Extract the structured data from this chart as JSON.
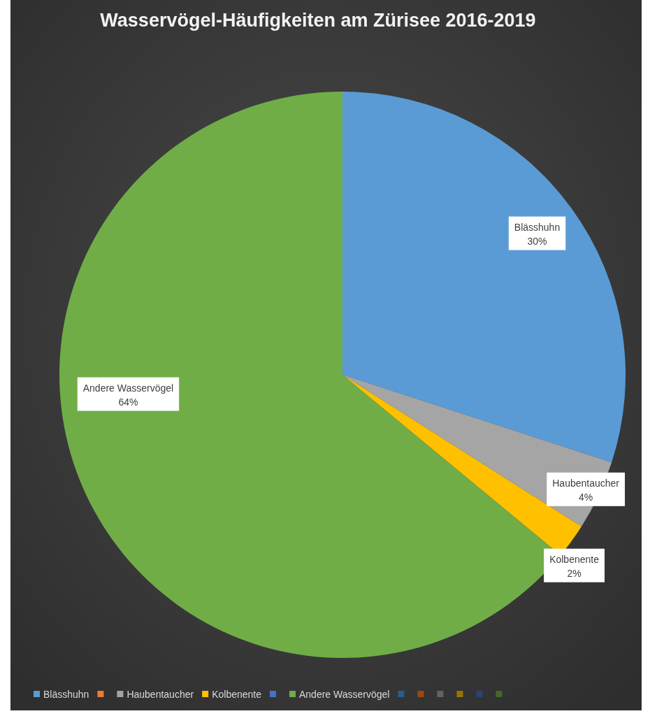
{
  "chart_data": {
    "type": "pie",
    "title": "Wasservögel-Häufigkeiten am Zürisee 2016-2019",
    "categories": [
      "Blässhuhn",
      null,
      "Haubentaucher",
      "Kolbenente",
      null,
      "Andere Wasservögel",
      null,
      null,
      null,
      null,
      null,
      null
    ],
    "values": [
      30,
      0,
      4,
      2,
      0,
      64,
      0,
      0,
      0,
      0,
      0,
      0
    ],
    "colors": [
      "#5b9bd5",
      "#ed7d31",
      "#a5a5a5",
      "#ffc000",
      "#4472c4",
      "#70ad47",
      "#255e91",
      "#9e480e",
      "#636363",
      "#997300",
      "#264478",
      "#43682b"
    ],
    "value_labels": [
      "30%",
      null,
      "4%",
      "2%",
      null,
      "64%",
      null,
      null,
      null,
      null,
      null,
      null
    ],
    "legend": "bottom"
  }
}
